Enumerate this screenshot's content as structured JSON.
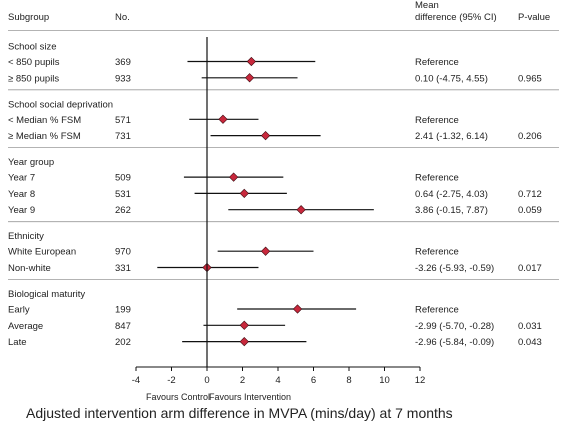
{
  "chart_data": {
    "type": "forest",
    "headers": {
      "subgroup": "Subgroup",
      "n": "No.",
      "diff_line1": "Mean",
      "diff_line2": "difference (95% CI)",
      "pvalue": "P-value"
    },
    "groups": [
      {
        "name": "School size",
        "rows": [
          {
            "label": "< 850 pupils",
            "n": "369",
            "estimate": 2.5,
            "lower": -1.1,
            "upper": 6.1,
            "ci_text": "Reference",
            "p": ""
          },
          {
            "label": "≥ 850 pupils",
            "n": "933",
            "estimate": 2.4,
            "lower": -0.3,
            "upper": 5.1,
            "ci_text": "0.10 (-4.75, 4.55)",
            "p": "0.965"
          }
        ]
      },
      {
        "name": "School social deprivation",
        "rows": [
          {
            "label": "< Median % FSM",
            "n": "571",
            "estimate": 0.9,
            "lower": -1.0,
            "upper": 2.9,
            "ci_text": "Reference",
            "p": ""
          },
          {
            "label": "≥ Median % FSM",
            "n": "731",
            "estimate": 3.3,
            "lower": 0.2,
            "upper": 6.4,
            "ci_text": "2.41 (-1.32, 6.14)",
            "p": "0.206"
          }
        ]
      },
      {
        "name": "Year group",
        "rows": [
          {
            "label": "Year 7",
            "n": "509",
            "estimate": 1.5,
            "lower": -1.3,
            "upper": 4.3,
            "ci_text": "Reference",
            "p": ""
          },
          {
            "label": "Year 8",
            "n": "531",
            "estimate": 2.1,
            "lower": -0.7,
            "upper": 4.5,
            "ci_text": "0.64 (-2.75, 4.03)",
            "p": "0.712"
          },
          {
            "label": "Year 9",
            "n": "262",
            "estimate": 5.3,
            "lower": 1.2,
            "upper": 9.4,
            "ci_text": "3.86 (-0.15, 7.87)",
            "p": "0.059"
          }
        ]
      },
      {
        "name": "Ethnicity",
        "rows": [
          {
            "label": "White European",
            "n": "970",
            "estimate": 3.3,
            "lower": 0.6,
            "upper": 6.0,
            "ci_text": "Reference",
            "p": ""
          },
          {
            "label": "Non-white",
            "n": "331",
            "estimate": 0.0,
            "lower": -2.8,
            "upper": 2.9,
            "ci_text": "-3.26 (-5.93, -0.59)",
            "p": "0.017"
          }
        ]
      },
      {
        "name": "Biological maturity",
        "rows": [
          {
            "label": "Early",
            "n": "199",
            "estimate": 5.1,
            "lower": 1.7,
            "upper": 8.4,
            "ci_text": "Reference",
            "p": ""
          },
          {
            "label": "Average",
            "n": "847",
            "estimate": 2.1,
            "lower": -0.2,
            "upper": 4.4,
            "ci_text": "-2.99 (-5.70, -0.28)",
            "p": "0.031"
          },
          {
            "label": "Late",
            "n": "202",
            "estimate": 2.1,
            "lower": -1.4,
            "upper": 5.6,
            "ci_text": "-2.96 (-5.84, -0.09)",
            "p": "0.043"
          }
        ]
      }
    ],
    "xlim": [
      -4,
      12
    ],
    "xticks": [
      "-4",
      "-2",
      "0",
      "2",
      "4",
      "6",
      "8",
      "10",
      "12"
    ],
    "reference_line": 0,
    "favours_left": "Favours Control",
    "favours_right": "Favours Intervention",
    "xlabel": "Adjusted intervention arm difference in  MVPA (mins/day) at 7 months",
    "colors": {
      "marker": "#c8283c",
      "line": "#111111",
      "divider": "#9a9a9a"
    }
  }
}
